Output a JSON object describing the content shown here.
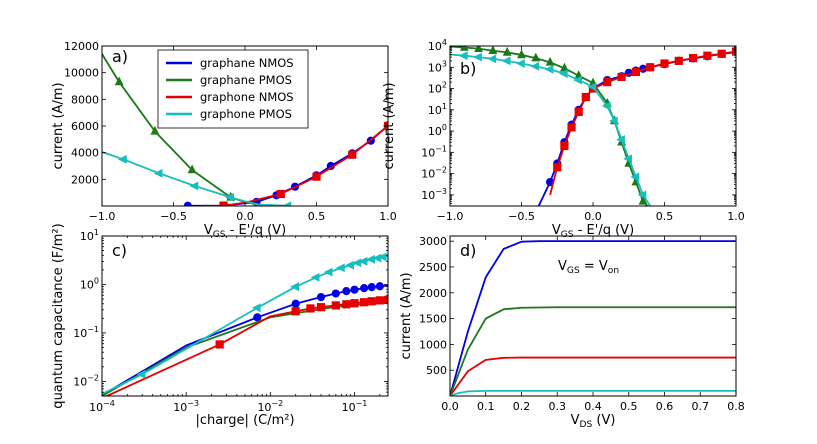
{
  "colors": {
    "graphane_nmos": "#0000e6",
    "graphane_pmos": "#1a7a1a",
    "graphone_nmos": "#e60000",
    "graphone_pmos": "#17bebe"
  },
  "chart_data": [
    {
      "id": "a",
      "type": "line",
      "panel_label": "a)",
      "xlabel": "V_GS - E'/q (V)",
      "ylabel": "current (A/m)",
      "xscale": "linear",
      "yscale": "linear",
      "xlim": [
        -1.0,
        1.0
      ],
      "ylim": [
        0,
        12000
      ],
      "xticks": [
        -1.0,
        -0.5,
        0.0,
        0.5,
        1.0
      ],
      "xtick_labels": [
        "−1.0",
        "−0.5",
        "0.0",
        "0.5",
        "1.0"
      ],
      "yticks": [
        2000,
        4000,
        6000,
        8000,
        10000,
        12000
      ],
      "ytick_labels": [
        "2000",
        "4000",
        "6000",
        "8000",
        "10000",
        "12000"
      ],
      "legend": {
        "placement": "upper-center",
        "entries": [
          {
            "label": "graphane NMOS",
            "color": "graphane_nmos"
          },
          {
            "label": "graphane PMOS",
            "color": "graphane_pmos"
          },
          {
            "label": "graphone NMOS",
            "color": "graphone_nmos"
          },
          {
            "label": "graphone PMOS",
            "color": "graphone_pmos"
          }
        ]
      },
      "series": [
        {
          "name": "graphane NMOS",
          "color": "graphane_nmos",
          "marker": "circle",
          "x": [
            -0.4,
            -0.15,
            0.08,
            0.22,
            0.35,
            0.5,
            0.6,
            0.75,
            0.88,
            1.0
          ],
          "y": [
            20,
            20,
            300,
            800,
            1450,
            2300,
            3000,
            3950,
            4900,
            6050
          ],
          "marker_idx": [
            0,
            2,
            3,
            4,
            5,
            6,
            7,
            8,
            9
          ]
        },
        {
          "name": "graphane PMOS",
          "color": "graphane_pmos",
          "marker": "triangle-up",
          "x": [
            -1.0,
            -0.88,
            -0.63,
            -0.37,
            -0.1,
            0.0,
            0.1,
            0.3
          ],
          "y": [
            11400,
            9300,
            5600,
            2700,
            650,
            300,
            80,
            10
          ],
          "marker_idx": [
            1,
            2,
            3,
            4
          ]
        },
        {
          "name": "graphone NMOS",
          "color": "graphone_nmos",
          "marker": "square",
          "x": [
            -0.3,
            -0.15,
            0.0,
            0.25,
            0.5,
            0.75,
            1.0
          ],
          "y": [
            20,
            30,
            250,
            900,
            2200,
            3850,
            6000
          ],
          "marker_idx": [
            1,
            3,
            4,
            5,
            6
          ]
        },
        {
          "name": "graphone PMOS",
          "color": "graphone_pmos",
          "marker": "triangle-left",
          "x": [
            -1.0,
            -0.85,
            -0.6,
            -0.35,
            -0.1,
            0.0,
            0.1,
            0.3
          ],
          "y": [
            4050,
            3500,
            2450,
            1500,
            650,
            350,
            100,
            20
          ],
          "marker_idx": [
            1,
            2,
            3,
            4,
            7
          ]
        }
      ]
    },
    {
      "id": "b",
      "type": "line",
      "panel_label": "b)",
      "xlabel": "V_GS - E'/q (V)",
      "ylabel": "current (A/m)",
      "xscale": "linear",
      "yscale": "log",
      "xlim": [
        -1.0,
        1.0
      ],
      "ylim": [
        0.0003,
        10000
      ],
      "xticks": [
        -1.0,
        -0.5,
        0.0,
        0.5,
        1.0
      ],
      "xtick_labels": [
        "−1.0",
        "−0.5",
        "0.0",
        "0.5",
        "1.0"
      ],
      "yticks": [
        0.001,
        0.01,
        0.1,
        1,
        10,
        100,
        1000,
        10000
      ],
      "ytick_exponents": [
        "−3",
        "−2",
        "−1",
        "0",
        "1",
        "2",
        "3",
        "4"
      ],
      "series": [
        {
          "name": "graphane NMOS",
          "color": "graphane_nmos",
          "marker": "circle",
          "x": [
            -0.38,
            -0.3,
            -0.25,
            -0.2,
            -0.15,
            -0.1,
            -0.05,
            0.0,
            0.1,
            0.2,
            0.25,
            0.3,
            0.35,
            0.4,
            0.5,
            0.6,
            0.7,
            0.8,
            0.9,
            1.0
          ],
          "y": [
            0.0003,
            0.004,
            0.03,
            0.3,
            2,
            10,
            40,
            100,
            250,
            380,
            550,
            700,
            850,
            1000,
            1400,
            2000,
            2600,
            3300,
            4200,
            5200
          ],
          "marker_idx": [
            1,
            2,
            3,
            4,
            5,
            6,
            7,
            8,
            9,
            10,
            11,
            12,
            13,
            14,
            15,
            16,
            17,
            18,
            19
          ]
        },
        {
          "name": "graphane PMOS",
          "color": "graphane_pmos",
          "marker": "triangle-up",
          "x": [
            -1.0,
            -0.9,
            -0.8,
            -0.7,
            -0.6,
            -0.5,
            -0.4,
            -0.3,
            -0.2,
            -0.1,
            0.0,
            0.1,
            0.15,
            0.2,
            0.25,
            0.3,
            0.35,
            0.38
          ],
          "y": [
            9500,
            8500,
            7500,
            6000,
            5000,
            3800,
            2700,
            1700,
            900,
            400,
            180,
            20,
            3,
            0.3,
            0.03,
            0.004,
            0.0005,
            0.0003
          ],
          "marker_idx": [
            1,
            2,
            3,
            4,
            5,
            6,
            7,
            8,
            9,
            10,
            11,
            12,
            13,
            14,
            15,
            16
          ]
        },
        {
          "name": "graphone NMOS",
          "color": "graphone_nmos",
          "marker": "square",
          "x": [
            -0.3,
            -0.25,
            -0.2,
            -0.15,
            -0.1,
            -0.05,
            0.0,
            0.1,
            0.2,
            0.3,
            0.4,
            0.5,
            0.6,
            0.7,
            0.8,
            0.9,
            1.0
          ],
          "y": [
            0.001,
            0.02,
            0.2,
            1.5,
            8,
            40,
            100,
            200,
            350,
            600,
            1000,
            1500,
            2000,
            2700,
            3500,
            4300,
            5500
          ],
          "marker_idx": [
            1,
            2,
            3,
            4,
            5,
            6,
            7,
            8,
            9,
            10,
            11,
            12,
            13,
            14,
            15,
            16
          ]
        },
        {
          "name": "graphone PMOS",
          "color": "graphone_pmos",
          "marker": "triangle-left",
          "x": [
            -1.0,
            -0.9,
            -0.8,
            -0.7,
            -0.6,
            -0.5,
            -0.4,
            -0.3,
            -0.2,
            -0.1,
            0.0,
            0.1,
            0.15,
            0.2,
            0.25,
            0.3,
            0.35,
            0.4
          ],
          "y": [
            4000,
            3500,
            3000,
            2500,
            2000,
            1500,
            1100,
            800,
            500,
            250,
            120,
            15,
            3,
            0.4,
            0.05,
            0.007,
            0.001,
            0.0003
          ],
          "marker_idx": [
            1,
            2,
            3,
            4,
            5,
            6,
            7,
            8,
            9,
            10,
            11,
            12,
            13,
            14,
            15,
            16
          ]
        }
      ]
    },
    {
      "id": "c",
      "type": "line",
      "panel_label": "c)",
      "xlabel": "|charge| (C/m²)",
      "ylabel": "quantum capacitance (F/m²)",
      "xscale": "log",
      "yscale": "log",
      "xlim": [
        0.0001,
        0.25
      ],
      "ylim": [
        0.005,
        10
      ],
      "xticks": [
        0.0001,
        0.001,
        0.01,
        0.1
      ],
      "xtick_exponents": [
        "−4",
        "−3",
        "−2",
        "−1"
      ],
      "yticks": [
        0.01,
        0.1,
        1,
        10
      ],
      "ytick_exponents": [
        "−2",
        "−1",
        "0",
        "1"
      ],
      "series": [
        {
          "name": "graphane NMOS",
          "color": "graphane_nmos",
          "marker": "circle",
          "x": [
            0.0001,
            0.001,
            0.007,
            0.02,
            0.04,
            0.06,
            0.08,
            0.1,
            0.13,
            0.16,
            0.2,
            0.25
          ],
          "y": [
            0.0052,
            0.055,
            0.21,
            0.4,
            0.55,
            0.65,
            0.73,
            0.78,
            0.84,
            0.88,
            0.92,
            0.94
          ],
          "marker_idx": [
            2,
            3,
            4,
            5,
            6,
            7,
            8,
            9,
            10
          ]
        },
        {
          "name": "graphane PMOS",
          "color": "graphane_pmos",
          "marker": "triangle-up",
          "x": [
            0.0001,
            0.001,
            0.01,
            0.05,
            0.1,
            0.25
          ],
          "y": [
            0.005,
            0.05,
            0.21,
            0.33,
            0.38,
            0.42
          ],
          "marker_idx": []
        },
        {
          "name": "graphone NMOS",
          "color": "graphone_nmos",
          "marker": "square",
          "x": [
            0.0001,
            0.0025,
            0.01,
            0.02,
            0.03,
            0.04,
            0.06,
            0.08,
            0.1,
            0.13,
            0.16,
            0.2,
            0.25
          ],
          "y": [
            0.0045,
            0.058,
            0.22,
            0.28,
            0.32,
            0.34,
            0.37,
            0.39,
            0.41,
            0.43,
            0.45,
            0.47,
            0.48
          ],
          "marker_idx": [
            1,
            3,
            4,
            5,
            6,
            7,
            8,
            9,
            10,
            11,
            12
          ]
        },
        {
          "name": "graphone PMOS",
          "color": "graphone_pmos",
          "marker": "triangle-left",
          "x": [
            0.0001,
            0.0003,
            0.007,
            0.02,
            0.035,
            0.05,
            0.07,
            0.09,
            0.11,
            0.13,
            0.16,
            0.19,
            0.22,
            0.25
          ],
          "y": [
            0.0055,
            0.014,
            0.33,
            0.9,
            1.4,
            1.8,
            2.2,
            2.5,
            2.8,
            3.0,
            3.3,
            3.5,
            3.7,
            3.8
          ],
          "marker_idx": [
            1,
            2,
            3,
            4,
            5,
            6,
            7,
            8,
            9,
            10,
            11,
            12
          ]
        }
      ]
    },
    {
      "id": "d",
      "type": "line",
      "panel_label": "d)",
      "annotation": "V_GS = V_on",
      "xlabel": "V_DS (V)",
      "ylabel": "current (A/m)",
      "xscale": "linear",
      "yscale": "linear",
      "xlim": [
        0.0,
        0.8
      ],
      "ylim": [
        0,
        3100
      ],
      "xticks": [
        0.0,
        0.1,
        0.2,
        0.3,
        0.4,
        0.5,
        0.6,
        0.7,
        0.8
      ],
      "xtick_labels": [
        "0.0",
        "0.1",
        "0.2",
        "0.3",
        "0.4",
        "0.5",
        "0.6",
        "0.7",
        "0.8"
      ],
      "yticks": [
        500,
        1000,
        1500,
        2000,
        2500,
        3000
      ],
      "ytick_labels": [
        "500",
        "1000",
        "1500",
        "2000",
        "2500",
        "3000"
      ],
      "series": [
        {
          "name": "graphane NMOS",
          "color": "graphane_nmos",
          "marker": "none",
          "x": [
            0.0,
            0.05,
            0.1,
            0.15,
            0.2,
            0.25,
            0.3,
            0.5,
            0.8
          ],
          "y": [
            0,
            1250,
            2300,
            2850,
            2990,
            3000,
            3000,
            3000,
            3000
          ]
        },
        {
          "name": "graphane PMOS",
          "color": "graphane_pmos",
          "marker": "none",
          "x": [
            0.0,
            0.05,
            0.1,
            0.15,
            0.2,
            0.3,
            0.5,
            0.8
          ],
          "y": [
            0,
            900,
            1500,
            1680,
            1710,
            1720,
            1720,
            1720
          ]
        },
        {
          "name": "graphone NMOS",
          "color": "graphone_nmos",
          "marker": "none",
          "x": [
            0.0,
            0.05,
            0.1,
            0.15,
            0.2,
            0.3,
            0.5,
            0.8
          ],
          "y": [
            0,
            480,
            700,
            740,
            745,
            745,
            745,
            745
          ]
        },
        {
          "name": "graphone PMOS",
          "color": "graphone_pmos",
          "marker": "none",
          "x": [
            0.0,
            0.02,
            0.05,
            0.1,
            0.2,
            0.5,
            0.8
          ],
          "y": [
            0,
            50,
            90,
            100,
            100,
            100,
            100
          ]
        }
      ]
    }
  ]
}
